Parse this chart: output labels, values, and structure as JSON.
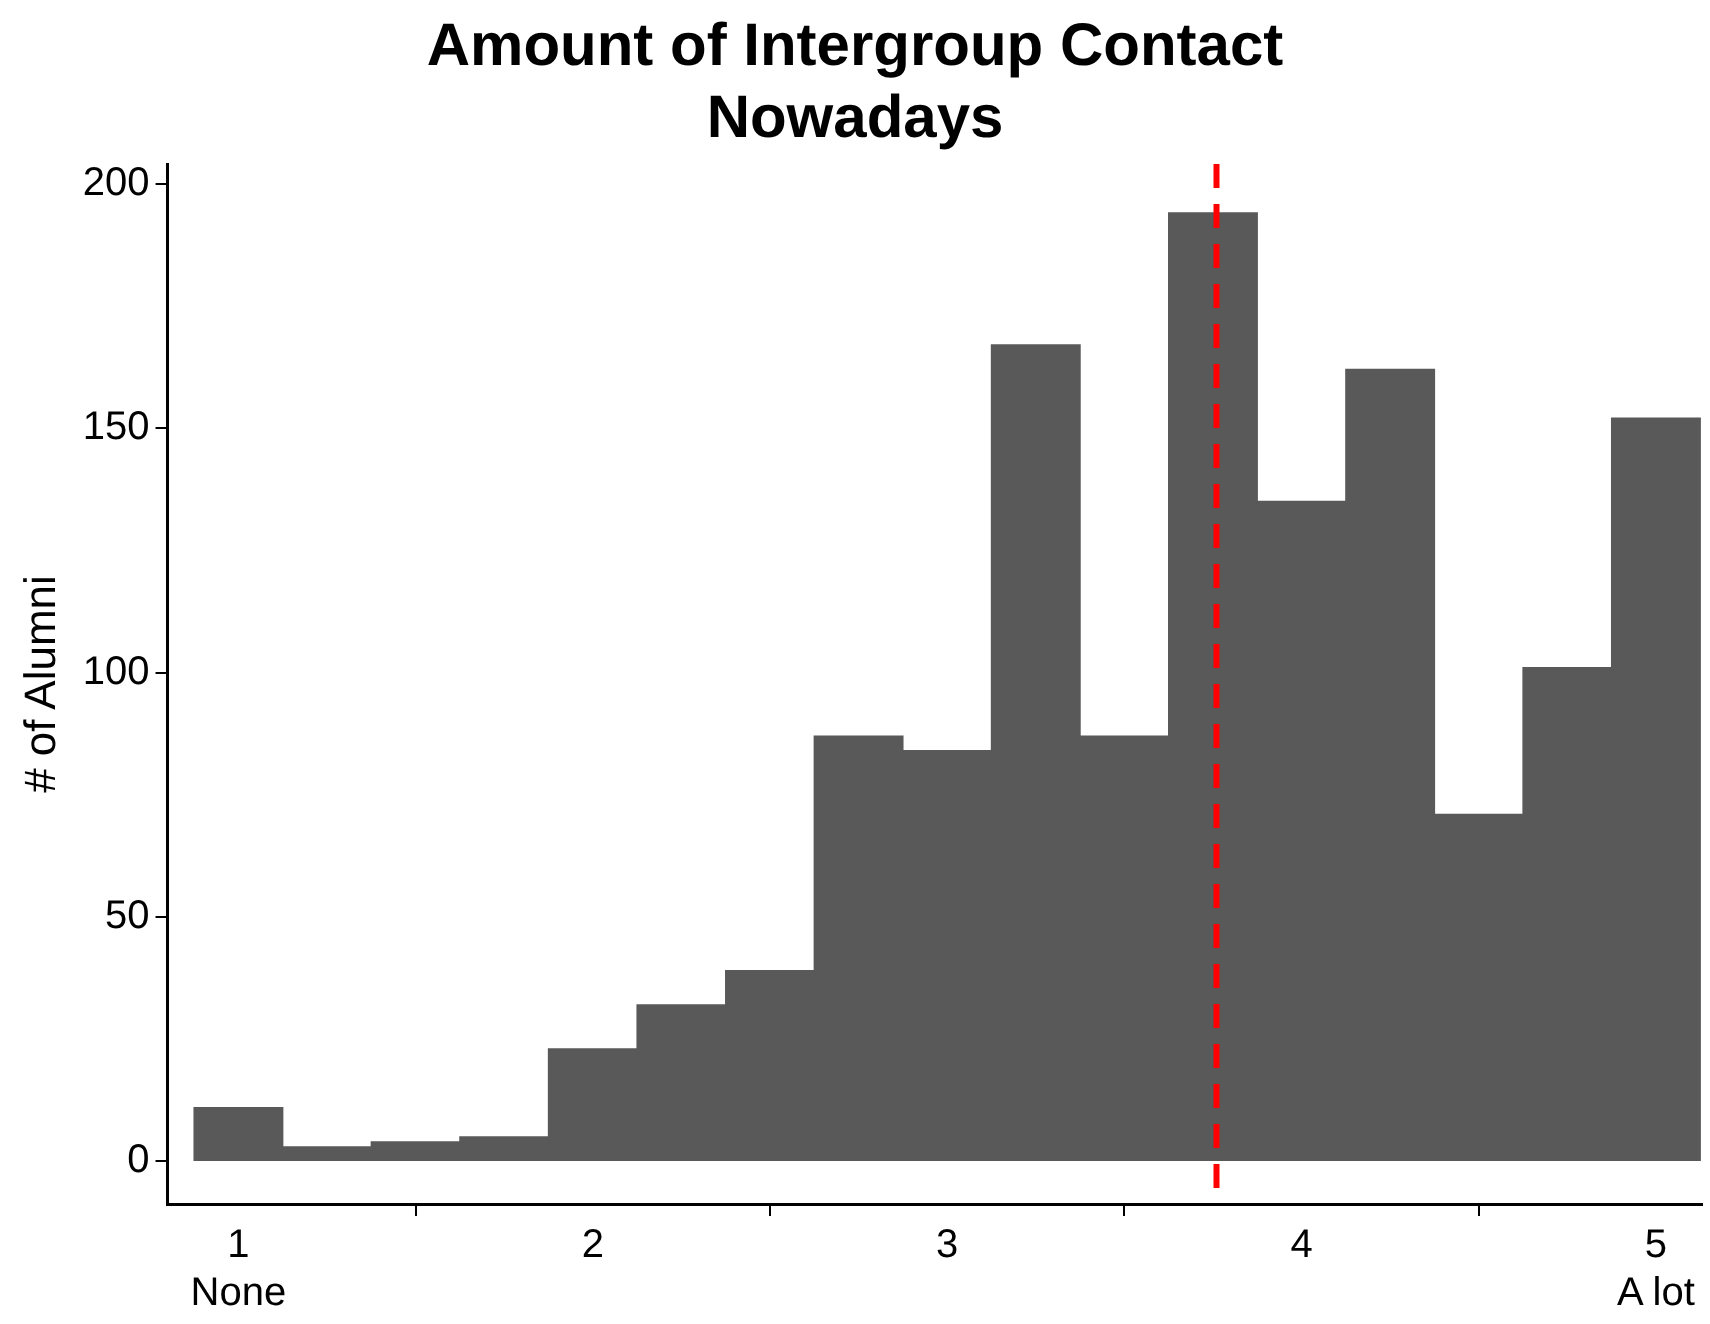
{
  "chart_data": {
    "type": "histogram",
    "title": "Amount of Intergroup Contact\nNowadays",
    "ylabel": "# of Alumni",
    "bins": [
      0.875,
      1.125,
      1.375,
      1.625,
      1.875,
      2.125,
      2.375,
      2.625,
      2.875,
      3.125,
      3.375,
      3.625,
      3.875,
      4.125,
      4.375,
      4.625,
      4.875,
      5.125
    ],
    "values": [
      11,
      3,
      4,
      5,
      23,
      32,
      39,
      87,
      84,
      167,
      87,
      194,
      135,
      162,
      71,
      101,
      152
    ],
    "color": "#595959",
    "xlim": [
      0.8,
      5.13
    ],
    "ylim": [
      -8.7,
      204
    ],
    "xticks": [
      {
        "value": 1,
        "label": "1\nNone"
      },
      2,
      3,
      4,
      {
        "value": 5,
        "label": "5\nA lot"
      }
    ],
    "yticks": [
      0,
      50,
      100,
      150,
      200
    ],
    "ref_lines": [
      {
        "axis": "x",
        "value": 3.76,
        "color": "#ff0000",
        "line_style": "dashed"
      }
    ],
    "grid": false,
    "legend": false
  }
}
